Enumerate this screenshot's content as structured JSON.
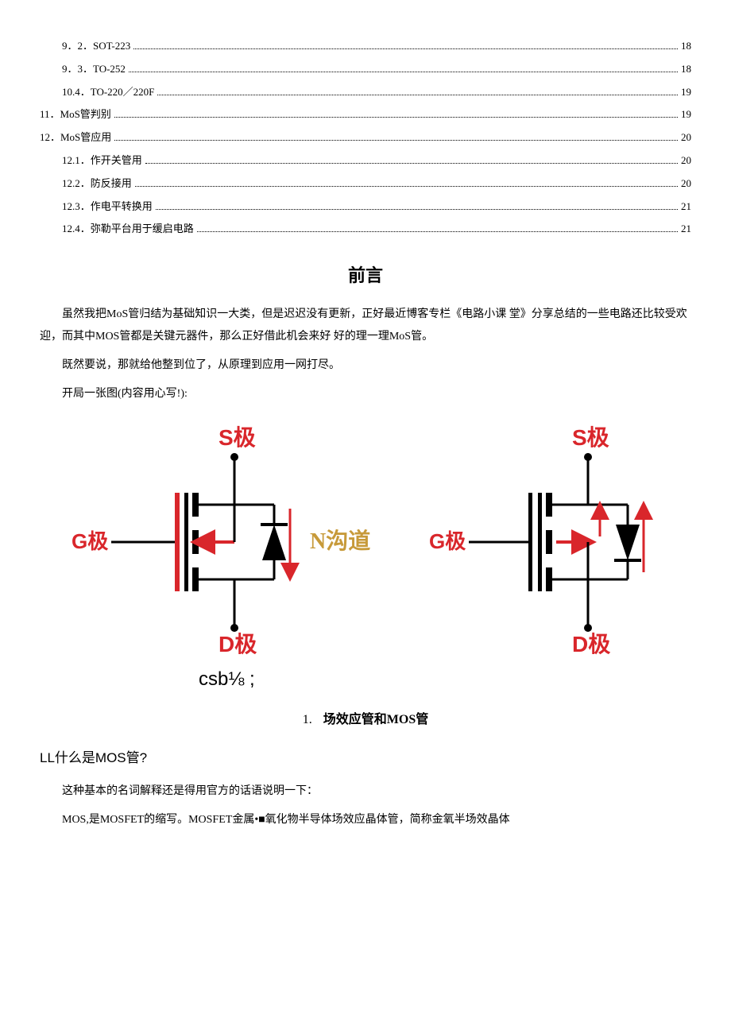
{
  "toc": [
    {
      "indent": 2,
      "label": "9．2．SOT-223",
      "page": "18"
    },
    {
      "indent": 2,
      "label": "9．3．TO-252",
      "page": "18"
    },
    {
      "indent": 2,
      "label": "10.4．TO-220／220F",
      "page": "19"
    },
    {
      "indent": 1,
      "label": "11．MoS管判别",
      "page": "19"
    },
    {
      "indent": 1,
      "label": "12．MoS管应用",
      "page": "20"
    },
    {
      "indent": 2,
      "label": "12.1．作开关管用",
      "page": "20"
    },
    {
      "indent": 2,
      "label": "12.2．防反接用",
      "page": "20"
    },
    {
      "indent": 2,
      "label": "12.3．作电平转换用",
      "page": "21"
    },
    {
      "indent": 2,
      "label": "12.4．弥勒平台用于缓启电路",
      "page": "21"
    }
  ],
  "preface": {
    "title": "前言",
    "p1": "虽然我把MoS管归结为基础知识一大类，但是迟迟没有更新，正好最近博客专栏《电路小课 堂》分享总结的一些电路还比较受欢迎，而其中MOS管都是关键元器件，那么正好借此机会来好 好的理一理MoS管。",
    "p2": "既然要说，那就给他整到位了，从原理到应用一网打尽。",
    "p3": "开局一张图(内容用心写!):"
  },
  "diagram": {
    "labels": {
      "S": "S极",
      "G": "G极",
      "D": "D极",
      "Nchannel": "N沟道"
    },
    "colors": {
      "red": "#d9262b",
      "orange": "#c79a3a",
      "black": "#000000",
      "label_font": "Arial, 'Microsoft YaHei', sans-serif"
    },
    "caption": "csb⅛ ;"
  },
  "section1": {
    "num": "1.",
    "title": "场效应管和MOS管"
  },
  "sub1": {
    "heading": "LL什么是MOS管?",
    "p1": "这种基本的名词解释还是得用官方的话语说明一下：",
    "p2": "MOS,是MOSFET的缩写。MOSFET金属•■氧化物半导体场效应晶体管，简称金氧半场效晶体"
  }
}
